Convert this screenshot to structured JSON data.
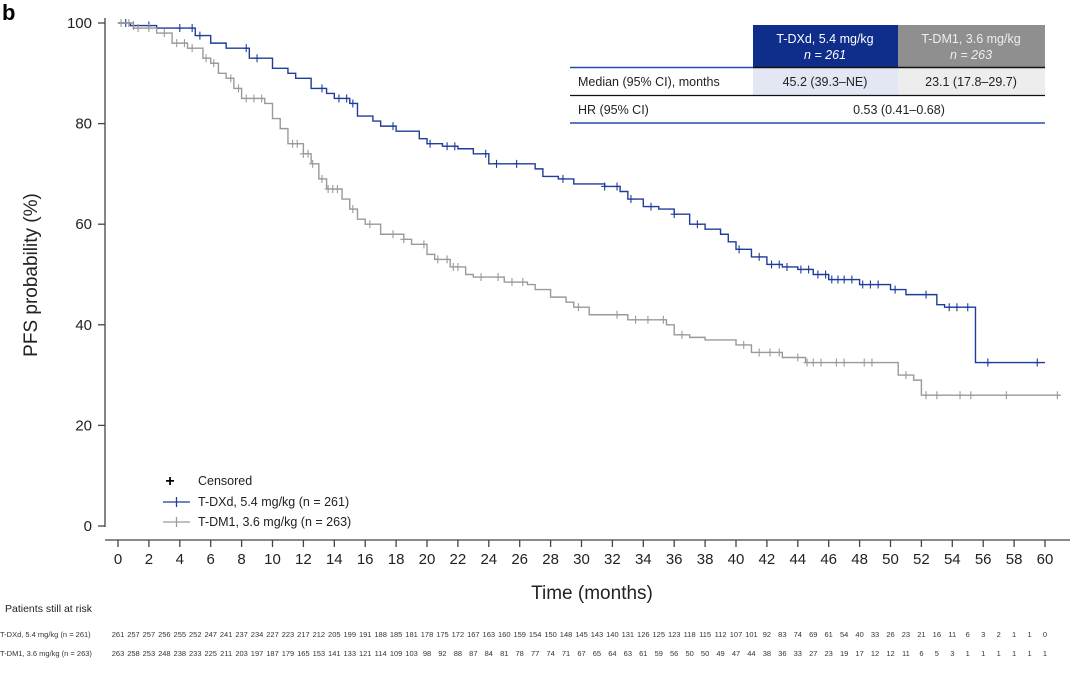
{
  "panel_label": "b",
  "chart_data": {
    "type": "line",
    "subtype": "kaplan-meier",
    "xlabel": "Time (months)",
    "ylabel": "PFS probability (%)",
    "xlim": [
      0,
      61
    ],
    "ylim": [
      0,
      100
    ],
    "xticks": [
      0,
      2,
      4,
      6,
      8,
      10,
      12,
      14,
      16,
      18,
      20,
      22,
      24,
      26,
      28,
      30,
      32,
      34,
      36,
      38,
      40,
      42,
      44,
      46,
      48,
      50,
      52,
      54,
      56,
      58,
      60
    ],
    "yticks": [
      0,
      20,
      40,
      60,
      80,
      100
    ],
    "grid": false,
    "legend_placement": "bottom-left",
    "legend": {
      "censored_label": "Censored",
      "censored_marker": "plus-icon"
    },
    "series": [
      {
        "name": "T-DXd, 5.4 mg/kg (n = 261)",
        "color": "#1f3c9a",
        "steps": [
          [
            0,
            100
          ],
          [
            0.8,
            99.5
          ],
          [
            2.5,
            99
          ],
          [
            5,
            97.5
          ],
          [
            6,
            96
          ],
          [
            7,
            95
          ],
          [
            8.5,
            93
          ],
          [
            10,
            91
          ],
          [
            11,
            90
          ],
          [
            11.5,
            89
          ],
          [
            12.5,
            87
          ],
          [
            13.5,
            86
          ],
          [
            14,
            85
          ],
          [
            15,
            84
          ],
          [
            15.5,
            81.5
          ],
          [
            16.5,
            80.5
          ],
          [
            17,
            79.5
          ],
          [
            18,
            78.5
          ],
          [
            19.5,
            77
          ],
          [
            20,
            76
          ],
          [
            21,
            75.5
          ],
          [
            22,
            75
          ],
          [
            23,
            74
          ],
          [
            24,
            72
          ],
          [
            27,
            71
          ],
          [
            27.5,
            69.5
          ],
          [
            28.5,
            69
          ],
          [
            29.5,
            68
          ],
          [
            31.5,
            67.5
          ],
          [
            32.5,
            66.5
          ],
          [
            33,
            65
          ],
          [
            34,
            63.5
          ],
          [
            35,
            63
          ],
          [
            36,
            62
          ],
          [
            37,
            60
          ],
          [
            38,
            59
          ],
          [
            39,
            58
          ],
          [
            39.5,
            56.5
          ],
          [
            40,
            55
          ],
          [
            41,
            53.5
          ],
          [
            42,
            52
          ],
          [
            43,
            51.5
          ],
          [
            44,
            51
          ],
          [
            45,
            50
          ],
          [
            46,
            49
          ],
          [
            48,
            48
          ],
          [
            50,
            47
          ],
          [
            51,
            46
          ],
          [
            53,
            44
          ],
          [
            53.5,
            43.5
          ],
          [
            55.5,
            32.5
          ],
          [
            60,
            32.5
          ]
        ],
        "censored": [
          0.5,
          1,
          2,
          4,
          4.8,
          5.3,
          8.3,
          9,
          13.2,
          14.3,
          14.8,
          15.2,
          17.8,
          20.2,
          21.3,
          21.8,
          23.8,
          24.5,
          25.8,
          28.8,
          31.5,
          32.3,
          33.2,
          34.5,
          36,
          37.5,
          40.2,
          41.5,
          42.3,
          42.8,
          43.3,
          44.2,
          44.7,
          45.3,
          45.8,
          46.2,
          46.6,
          47,
          47.5,
          48.2,
          48.7,
          49.2,
          50.3,
          52.3,
          53.8,
          54.3,
          55,
          56.3,
          59.5
        ],
        "at_risk": [
          261,
          257,
          257,
          256,
          255,
          252,
          247,
          241,
          237,
          234,
          227,
          223,
          217,
          212,
          205,
          199,
          191,
          188,
          185,
          181,
          178,
          175,
          172,
          167,
          163,
          160,
          159,
          154,
          150,
          148,
          145,
          143,
          140,
          131,
          126,
          125,
          123,
          118,
          115,
          112,
          107,
          101,
          92,
          83,
          74,
          69,
          61,
          54,
          40,
          33,
          26,
          23,
          21,
          16,
          11,
          6,
          3,
          2,
          1,
          1,
          0
        ]
      },
      {
        "name": "T-DM1, 3.6 mg/kg (n = 263)",
        "color": "#9a9a9a",
        "steps": [
          [
            0,
            100
          ],
          [
            1,
            99
          ],
          [
            2.5,
            98
          ],
          [
            3.5,
            96
          ],
          [
            4.5,
            95
          ],
          [
            5.5,
            93
          ],
          [
            6,
            92
          ],
          [
            6.5,
            90
          ],
          [
            7,
            89
          ],
          [
            7.5,
            87
          ],
          [
            8,
            85
          ],
          [
            9.5,
            84
          ],
          [
            10,
            81
          ],
          [
            10.5,
            79
          ],
          [
            11,
            76
          ],
          [
            12,
            74
          ],
          [
            12.5,
            72
          ],
          [
            13,
            69
          ],
          [
            13.5,
            67
          ],
          [
            14.5,
            65
          ],
          [
            15,
            63
          ],
          [
            15.5,
            61
          ],
          [
            16,
            60
          ],
          [
            17,
            58
          ],
          [
            18.5,
            57
          ],
          [
            19,
            56
          ],
          [
            20,
            54
          ],
          [
            20.5,
            53
          ],
          [
            21.5,
            51.5
          ],
          [
            22.5,
            50
          ],
          [
            23,
            49.5
          ],
          [
            25,
            48.5
          ],
          [
            26.5,
            48
          ],
          [
            27,
            47
          ],
          [
            28,
            45.5
          ],
          [
            29,
            44.5
          ],
          [
            29.5,
            43.5
          ],
          [
            30.5,
            42
          ],
          [
            33,
            41
          ],
          [
            35.5,
            40
          ],
          [
            36,
            38
          ],
          [
            37,
            37.5
          ],
          [
            38,
            37
          ],
          [
            40,
            36
          ],
          [
            41,
            34.5
          ],
          [
            43,
            33.5
          ],
          [
            44.5,
            32.5
          ],
          [
            50.5,
            30
          ],
          [
            51.5,
            29
          ],
          [
            52,
            26
          ],
          [
            61,
            26
          ]
        ],
        "censored": [
          0.2,
          0.7,
          1.3,
          2,
          3,
          3.8,
          4.3,
          4.8,
          5.7,
          6.2,
          7.3,
          7.8,
          8.3,
          8.8,
          9.3,
          11.3,
          11.6,
          12,
          12.3,
          12.6,
          13.2,
          13.6,
          13.9,
          14.2,
          15.2,
          16.3,
          17.8,
          18.5,
          19.8,
          20.7,
          21.3,
          21.7,
          22,
          23.5,
          24.6,
          25.5,
          26.2,
          29.8,
          32.3,
          33.5,
          34.3,
          35.3,
          36.5,
          40.5,
          41.5,
          42.2,
          42.8,
          44,
          44.6,
          45,
          45.5,
          46.5,
          47,
          48.3,
          48.8,
          51,
          52.3,
          53,
          54.5,
          55.2,
          57.5,
          60.8
        ],
        "at_risk": [
          263,
          258,
          253,
          248,
          238,
          233,
          225,
          211,
          203,
          197,
          187,
          179,
          165,
          153,
          141,
          133,
          121,
          114,
          109,
          103,
          98,
          92,
          88,
          87,
          84,
          81,
          78,
          77,
          74,
          71,
          67,
          65,
          64,
          63,
          61,
          59,
          56,
          50,
          50,
          49,
          47,
          44,
          38,
          36,
          33,
          27,
          23,
          19,
          17,
          12,
          12,
          11,
          6,
          5,
          3,
          1,
          1,
          1,
          1,
          1,
          1
        ]
      }
    ]
  },
  "summary_table": {
    "col1_line1": "T-DXd, 5.4 mg/kg",
    "col1_line2": "n = 261",
    "col2_line1": "T-DM1, 3.6 mg/kg",
    "col2_line2": "n = 263",
    "row1_label": "Median (95% CI), months",
    "row1_col1": "45.2 (39.3–NE)",
    "row1_col2": "23.1 (17.8–29.7)",
    "row2_label": "HR (95% CI)",
    "row2_value": "0.53 (0.41–0.68)",
    "colors": {
      "col1_header": "#0f2d8a",
      "col2_header": "#8f8f8f",
      "col1_cell": "#e3e7f3",
      "col2_cell": "#ededed",
      "rule_blue": "#2a4aa8"
    }
  },
  "at_risk_title": "Patients still at risk",
  "at_risk_labels": [
    "T-DXd, 5.4 mg/kg (n = 261)",
    "T-DM1, 3.6 mg/kg (n = 263)"
  ]
}
